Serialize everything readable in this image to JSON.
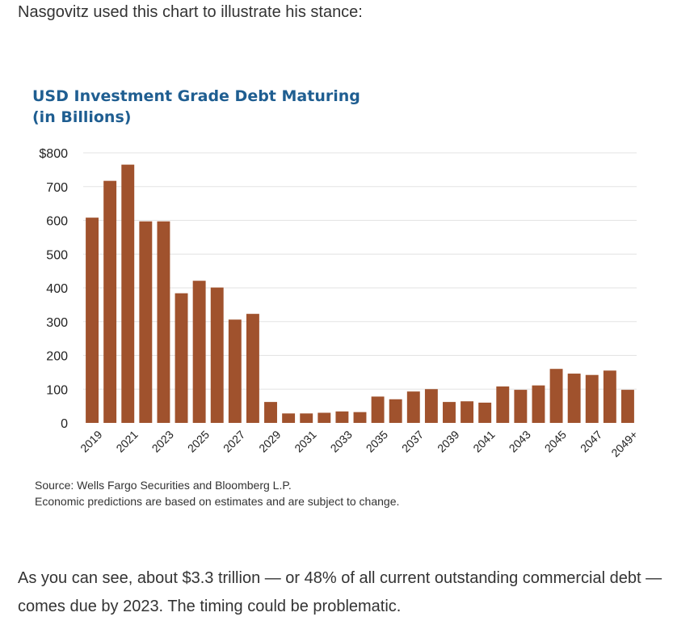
{
  "intro_text": "Nasgovitz used this chart to illustrate his stance:",
  "outro_text": "As you can see, about $3.3 trillion — or 48% of all current outstanding commercial debt — comes due by 2023. The timing could be problematic.",
  "colors": {
    "bar": "#a0522d",
    "title": "#1f5e91"
  },
  "chart_data": {
    "type": "bar",
    "title": "USD Investment Grade Debt Maturing",
    "subtitle": "(in Billions)",
    "xlabel": "",
    "ylabel": "",
    "ylim": [
      0,
      800
    ],
    "yticks": [
      0,
      100,
      200,
      300,
      400,
      500,
      600,
      700,
      800
    ],
    "ytick_labels": [
      "0",
      "100",
      "200",
      "300",
      "400",
      "500",
      "600",
      "700",
      "$800"
    ],
    "grid": true,
    "categories": [
      "2019",
      "2020",
      "2021",
      "2022",
      "2023",
      "2024",
      "2025",
      "2026",
      "2027",
      "2028",
      "2029",
      "2030",
      "2031",
      "2032",
      "2033",
      "2034",
      "2035",
      "2036",
      "2037",
      "2038",
      "2039",
      "2040",
      "2041",
      "2042",
      "2043",
      "2044",
      "2045",
      "2046",
      "2047",
      "2048",
      "2049+"
    ],
    "xtick_labels": [
      "2019",
      "2021",
      "2023",
      "2025",
      "2027",
      "2029",
      "2031",
      "2033",
      "2035",
      "2037",
      "2039",
      "2041",
      "2043",
      "2045",
      "2047",
      "2049+"
    ],
    "values": [
      608,
      717,
      765,
      597,
      597,
      384,
      421,
      401,
      306,
      323,
      62,
      28,
      28,
      30,
      34,
      32,
      78,
      70,
      93,
      100,
      62,
      64,
      60,
      108,
      98,
      111,
      160,
      146,
      142,
      155,
      98
    ],
    "source_lines": [
      "Source: Wells Fargo Securities and Bloomberg L.P.",
      "Economic predictions are based on estimates and are subject to change."
    ]
  }
}
